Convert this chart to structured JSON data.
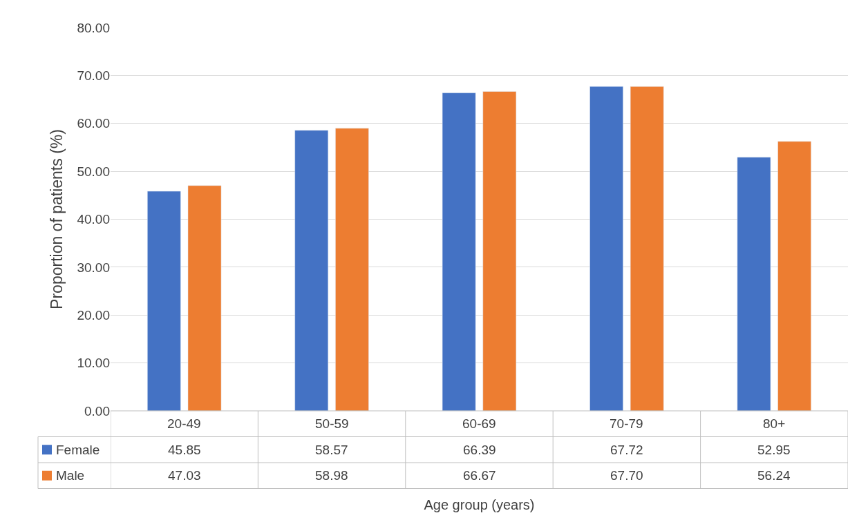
{
  "chart_data": {
    "type": "bar",
    "xlabel": "Age group (years)",
    "ylabel": "Proportion of patients (%)",
    "categories": [
      "20-49",
      "50-59",
      "60-69",
      "70-79",
      "80+"
    ],
    "series": [
      {
        "name": "Female",
        "color": "#4472c4",
        "values": [
          45.85,
          58.57,
          66.39,
          67.72,
          52.95
        ],
        "value_labels": [
          "45.85",
          "58.57",
          "66.39",
          "67.72",
          "52.95"
        ]
      },
      {
        "name": "Male",
        "color": "#ed7d31",
        "values": [
          47.03,
          58.98,
          66.67,
          67.7,
          56.24
        ],
        "value_labels": [
          "47.03",
          "58.98",
          "66.67",
          "67.70",
          "56.24"
        ]
      }
    ],
    "ylim": [
      0,
      80
    ],
    "yticks": [
      {
        "value": 0,
        "label": "0.00"
      },
      {
        "value": 10,
        "label": "10.00"
      },
      {
        "value": 20,
        "label": "20.00"
      },
      {
        "value": 30,
        "label": "30.00"
      },
      {
        "value": 40,
        "label": "40.00"
      },
      {
        "value": 50,
        "label": "50.00"
      },
      {
        "value": 60,
        "label": "60.00"
      },
      {
        "value": 70,
        "label": "70.00"
      },
      {
        "value": 80,
        "label": "80.00"
      }
    ],
    "grid": "y",
    "legend": "bottom"
  }
}
